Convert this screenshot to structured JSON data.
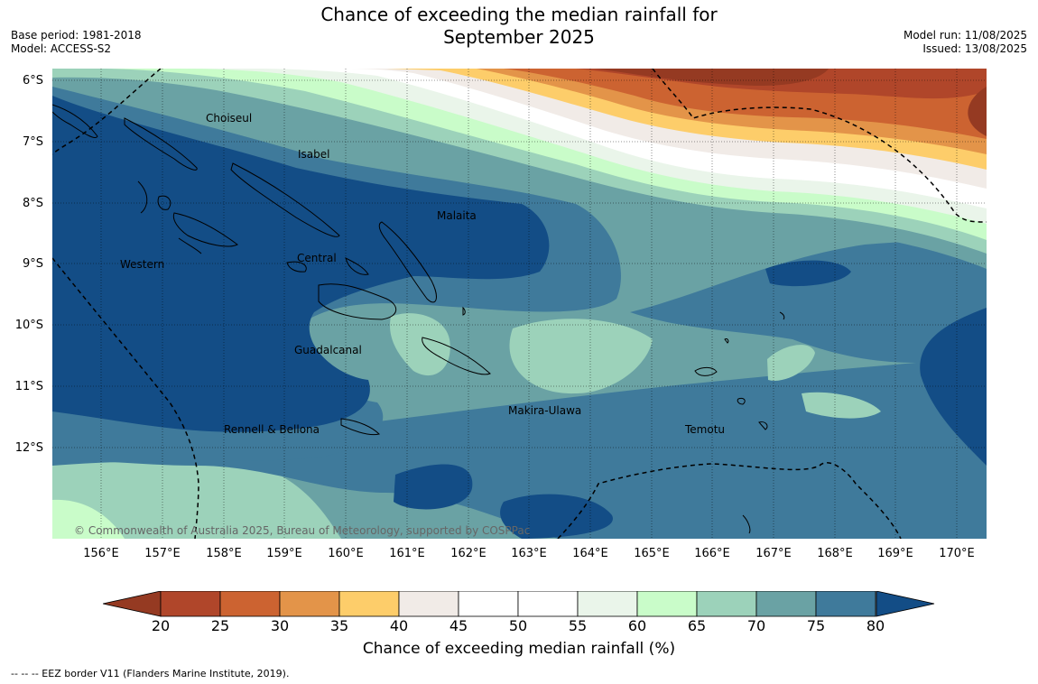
{
  "title_line1": "Chance of exceeding the median rainfall for",
  "title_line2": "September 2025",
  "base_period": "Base period: 1981-2018",
  "model": "Model: ACCESS-S2",
  "model_run": "Model run: 11/08/2025",
  "issued": "Issued: 13/08/2025",
  "lat_labels": [
    "6°S",
    "7°S",
    "8°S",
    "9°S",
    "10°S",
    "11°S",
    "12°S"
  ],
  "lon_labels": [
    "156°E",
    "157°E",
    "158°E",
    "159°E",
    "160°E",
    "161°E",
    "162°E",
    "163°E",
    "164°E",
    "165°E",
    "166°E",
    "167°E",
    "168°E",
    "169°E",
    "170°E"
  ],
  "places": {
    "choiseul": "Choiseul",
    "isabel": "Isabel",
    "malaita": "Malaita",
    "western": "Western",
    "central": "Central",
    "guadalcanal": "Guadalcanal",
    "makira": "Makira-Ulawa",
    "rennell": "Rennell & Bellona",
    "temotu": "Temotu"
  },
  "copyright": "© Commonwealth of Australia 2025, Bureau of Meteorology, supported by COSPPac",
  "colorbar": {
    "ticks": [
      "20",
      "25",
      "30",
      "35",
      "40",
      "45",
      "50",
      "55",
      "60",
      "65",
      "70",
      "75",
      "80"
    ],
    "colors": [
      "#b0462a",
      "#cc6331",
      "#e39449",
      "#fdcd6a",
      "#f1ebe7",
      "#ffffff",
      "#ffffff",
      "#eaf5ea",
      "#c9fcc9",
      "#9cd2ba",
      "#6aa2a4",
      "#3f7a9b"
    ],
    "low_color": "#953a22",
    "high_color": "#134d86",
    "label": "Chance of exceeding median rainfall (%)"
  },
  "footer": "--  --  -- EEZ border V11 (Flanders Marine Institute, 2019)."
}
